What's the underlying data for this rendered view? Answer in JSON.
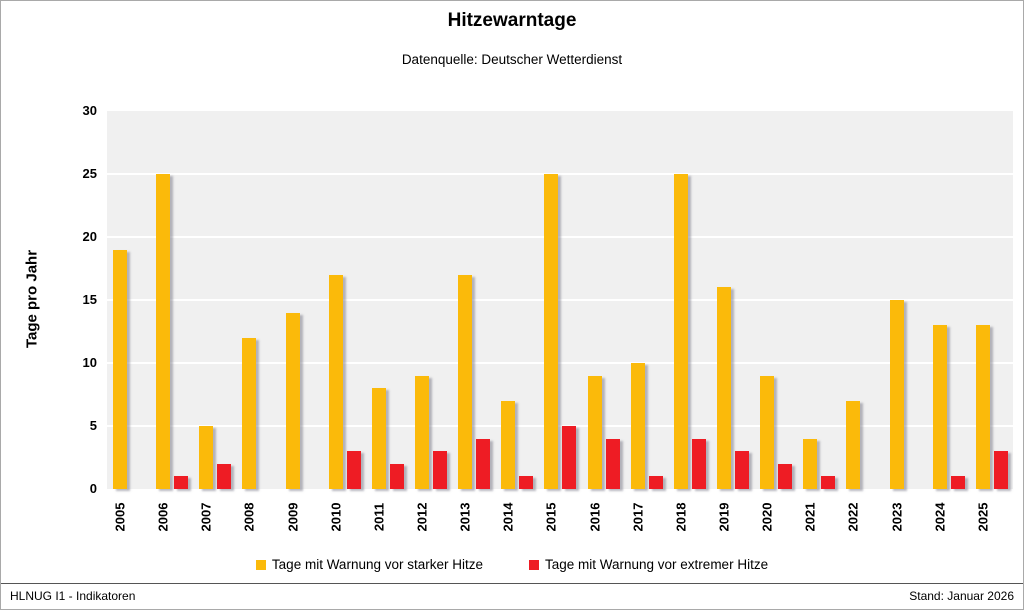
{
  "header": {
    "title": "Hitzewarntage",
    "subtitle": "Datenquelle: Deutscher Wetterdienst"
  },
  "chart_data": {
    "type": "bar",
    "title": "Hitzewarntage",
    "subtitle": "Datenquelle: Deutscher Wetterdienst",
    "xlabel": "",
    "ylabel": "Tage pro Jahr",
    "ylim": [
      0,
      30
    ],
    "yticks": [
      0,
      5,
      10,
      15,
      20,
      25,
      30
    ],
    "grid": "horizontal-white-on-gray",
    "plot_background": "#F0F0F0",
    "gridline_color": "#FFFFFF",
    "legend_position": "bottom",
    "categories": [
      "2005",
      "2006",
      "2007",
      "2008",
      "2009",
      "2010",
      "2011",
      "2012",
      "2013",
      "2014",
      "2015",
      "2016",
      "2017",
      "2018",
      "2019",
      "2020",
      "2021",
      "2022",
      "2023",
      "2024",
      "2025"
    ],
    "series": [
      {
        "name": "Tage mit Warnung vor starker Hitze",
        "color": "#FBBA0A",
        "values": [
          19,
          25,
          5,
          12,
          14,
          17,
          8,
          9,
          17,
          7,
          25,
          9,
          10,
          25,
          16,
          9,
          4,
          7,
          15,
          13,
          13
        ]
      },
      {
        "name": "Tage mit Warnung vor extremer Hitze",
        "color": "#EE1C24",
        "values": [
          0,
          1,
          2,
          0,
          0,
          3,
          2,
          3,
          4,
          1,
          5,
          4,
          1,
          4,
          3,
          2,
          1,
          0,
          0,
          1,
          3
        ]
      }
    ]
  },
  "footer": {
    "left": "HLNUG I1 - Indikatoren",
    "right": "Stand: Januar 2026"
  }
}
